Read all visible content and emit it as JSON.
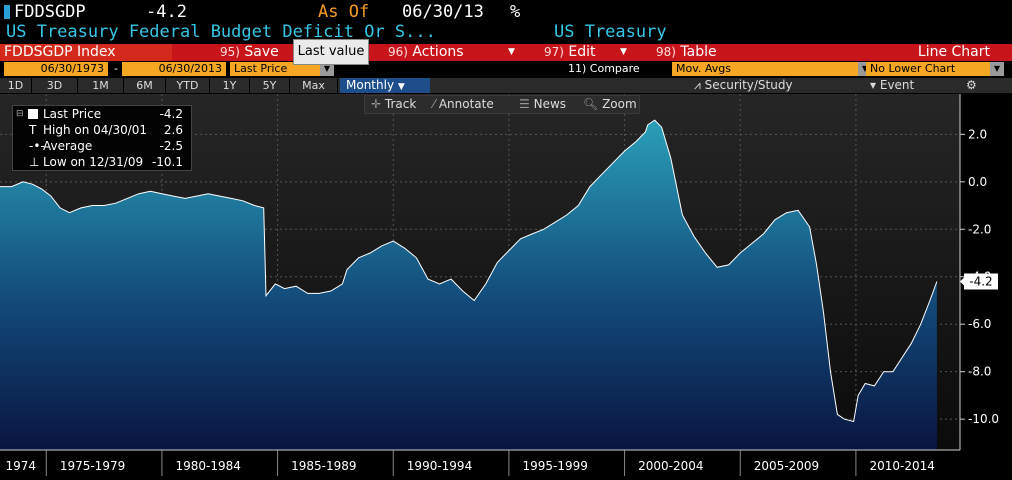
{
  "header": {
    "ticker": "FDDSGDP",
    "value": "-4.2",
    "as_of_label": "As Of",
    "as_of_date": "06/30/13",
    "unit": "%",
    "description": "US Treasury Federal Budget Deficit Or S...",
    "source": "US Treasury"
  },
  "menu": {
    "index_label": "FDDSGDP Index",
    "save": "Save",
    "save_num": "95)",
    "actions": "Actions",
    "actions_num": "96)",
    "edit": "Edit",
    "edit_num": "97)",
    "table": "Table",
    "table_num": "98)",
    "chart_type": "Line Chart"
  },
  "tooltip": "Last value",
  "range": {
    "start": "06/30/1973",
    "separator": "-",
    "end": "06/30/2013",
    "field": "Last Price",
    "compare": "11) Compare",
    "mov_avgs": "Mov. Avgs",
    "lower_chart": "No Lower Chart"
  },
  "periods": [
    "1D",
    "3D",
    "1M",
    "6M",
    "YTD",
    "1Y",
    "5Y",
    "Max"
  ],
  "frequency": "Monthly",
  "right_tools": {
    "security_study": "Security/Study",
    "event": "Event",
    "settings_icon": "gear-icon"
  },
  "toolbar": {
    "track": "Track",
    "annotate": "Annotate",
    "news": "News",
    "zoom": "Zoom"
  },
  "legend": {
    "last_price_label": "Last Price",
    "last_price_value": "-4.2",
    "high_label": "High on 04/30/01",
    "high_value": "2.6",
    "average_label": "Average",
    "average_value": "-2.5",
    "low_label": "Low on 12/31/09",
    "low_value": "-10.1"
  },
  "colors": {
    "accent_orange": "#f5a623",
    "menu_red": "#c8151b",
    "description_cyan": "#35c7e6",
    "area_fill_top": "#2a9fb8",
    "area_fill_bottom": "#0a1540"
  },
  "chart_data": {
    "type": "area",
    "ylim": [
      -11.3,
      3.7
    ],
    "y_ticks": [
      2.0,
      0.0,
      -2.0,
      -4.0,
      -6.0,
      -8.0,
      -10.0
    ],
    "y_tick_labels": [
      "2.0",
      "0.0",
      "-2.0",
      "-4.0",
      "-6.0",
      "-8.0",
      "-10.0"
    ],
    "x_labels": [
      "1974",
      "1975-1979",
      "1980-1984",
      "1985-1989",
      "1990-1994",
      "1995-1999",
      "2000-2004",
      "2005-2009",
      "2010-2014"
    ],
    "x_label_years": [
      1973.9,
      1977.0,
      1982.0,
      1987.0,
      1992.0,
      1997.0,
      2002.0,
      2007.0,
      2012.0
    ],
    "x_range": [
      1973.0,
      2014.5
    ],
    "last_value_label": "-4.2",
    "grid": true,
    "series": [
      {
        "values_x": [
          1973.0,
          1973.5,
          1974.0,
          1974.4,
          1974.8,
          1975.2,
          1975.6,
          1976.0,
          1976.5,
          1977.0,
          1977.5,
          1978.0,
          1978.5,
          1979.0,
          1979.5,
          1980.0,
          1980.5,
          1981.0,
          1981.5,
          1982.0,
          1982.5,
          1983.0,
          1983.5,
          1984.0,
          1984.4,
          1984.5,
          1984.9,
          1985.3,
          1985.8,
          1986.3,
          1986.8,
          1987.3,
          1987.8,
          1988.0,
          1988.5,
          1989.0,
          1989.5,
          1990.0,
          1990.5,
          1991.0,
          1991.5,
          1992.0,
          1992.5,
          1993.0,
          1993.5,
          1994.0,
          1994.5,
          1995.0,
          1995.5,
          1996.0,
          1996.5,
          1997.0,
          1997.5,
          1998.0,
          1998.5,
          1999.0,
          1999.5,
          2000.0,
          2000.5,
          2000.9,
          2001.0,
          2001.3,
          2001.6,
          2002.0,
          2002.5,
          2003.0,
          2003.5,
          2004.0,
          2004.5,
          2005.0,
          2005.5,
          2006.0,
          2006.5,
          2007.0,
          2007.5,
          2008.0,
          2008.3,
          2008.6,
          2008.9,
          2009.2,
          2009.5,
          2009.9,
          2010.1,
          2010.4,
          2010.8,
          2011.2,
          2011.6,
          2012.0,
          2012.4,
          2012.8,
          2013.2,
          2013.5
        ],
        "values_y": [
          -0.2,
          -0.2,
          0.0,
          -0.1,
          -0.3,
          -0.6,
          -1.1,
          -1.3,
          -1.1,
          -1.0,
          -1.0,
          -0.9,
          -0.7,
          -0.5,
          -0.4,
          -0.5,
          -0.6,
          -0.7,
          -0.6,
          -0.5,
          -0.6,
          -0.7,
          -0.8,
          -1.0,
          -1.1,
          -4.8,
          -4.3,
          -4.5,
          -4.4,
          -4.7,
          -4.7,
          -4.6,
          -4.3,
          -3.7,
          -3.2,
          -3.0,
          -2.7,
          -2.5,
          -2.8,
          -3.2,
          -4.1,
          -4.3,
          -4.1,
          -4.6,
          -5.0,
          -4.3,
          -3.4,
          -2.9,
          -2.4,
          -2.2,
          -2.0,
          -1.7,
          -1.4,
          -1.0,
          -0.2,
          0.3,
          0.8,
          1.3,
          1.7,
          2.1,
          2.4,
          2.6,
          2.3,
          1.0,
          -1.4,
          -2.3,
          -3.0,
          -3.6,
          -3.5,
          -3.0,
          -2.6,
          -2.2,
          -1.6,
          -1.3,
          -1.2,
          -1.9,
          -3.5,
          -5.5,
          -8.0,
          -9.8,
          -10.0,
          -10.1,
          -9.0,
          -8.5,
          -8.6,
          -8.0,
          -8.0,
          -7.4,
          -6.8,
          -6.0,
          -5.0,
          -4.2
        ]
      }
    ]
  }
}
